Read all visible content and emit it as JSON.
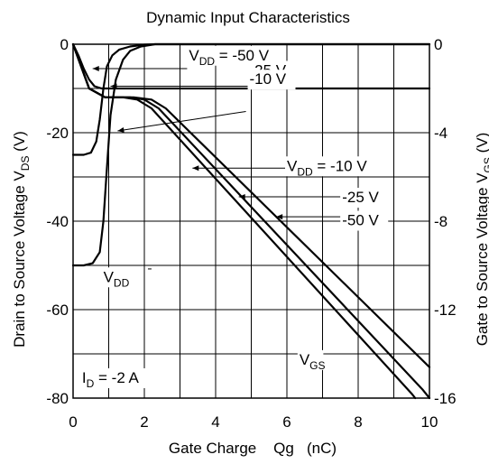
{
  "chart_data": {
    "type": "line",
    "title": "Dynamic Input Characteristics",
    "xlabel": "Gate Charge    Qg   (nC)",
    "ylabel_left": "Drain to Source Voltage   V_DS  (V)",
    "ylabel_right": "Gate to Source Voltage   V_GS  (V)",
    "xlim": [
      0,
      10
    ],
    "ylim_left": [
      -80,
      0
    ],
    "ylim_right": [
      -16,
      0
    ],
    "x_ticks": [
      "0",
      "2",
      "4",
      "6",
      "8",
      "10"
    ],
    "y_left_ticks": [
      "0",
      "-20",
      "-40",
      "-60",
      "-80"
    ],
    "y_right_ticks": [
      "0",
      "-4",
      "-8",
      "-12",
      "-16"
    ],
    "grid": true,
    "series": [
      {
        "name": "V_DS, V_DD = -50 V",
        "axis": "left",
        "x": [
          0,
          0.3,
          0.55,
          0.75,
          0.85,
          0.95,
          1.05,
          1.2,
          1.4,
          1.6,
          1.9,
          2.3,
          10
        ],
        "y": [
          -50,
          -50,
          -49.5,
          -47,
          -40,
          -28,
          -16,
          -8,
          -3.5,
          -1.5,
          -0.5,
          0,
          0
        ]
      },
      {
        "name": "V_DS, V_DD = -25 V",
        "axis": "left",
        "x": [
          0,
          0.3,
          0.5,
          0.65,
          0.75,
          0.85,
          0.95,
          1.1,
          1.3,
          1.6,
          2.0,
          2.3,
          10
        ],
        "y": [
          -25,
          -25,
          -24.5,
          -22,
          -17,
          -10,
          -5,
          -2.5,
          -1.2,
          -0.5,
          -0.1,
          0,
          0
        ]
      },
      {
        "name": "V_DS, V_DD = -10 V",
        "axis": "left",
        "x": [
          0,
          0.15,
          0.3,
          0.45,
          0.6,
          0.8,
          1.0,
          1.2,
          10
        ],
        "y": [
          0,
          -2.5,
          -5.5,
          -8,
          -9.5,
          -10,
          -10,
          -10,
          -10
        ]
      },
      {
        "name": "V_GS, V_DD = -10 V",
        "axis": "right",
        "x": [
          0,
          0.45,
          0.9,
          1.7,
          2.2,
          2.6,
          10
        ],
        "y": [
          0,
          -2.0,
          -2.4,
          -2.4,
          -2.5,
          -2.9,
          -14.6
        ]
      },
      {
        "name": "V_GS, V_DD = -25 V",
        "axis": "right",
        "x": [
          0,
          0.45,
          0.9,
          1.6,
          2.0,
          2.4,
          9.8,
          10
        ],
        "y": [
          0,
          -2.0,
          -2.4,
          -2.4,
          -2.5,
          -2.9,
          -15.6,
          -16
        ]
      },
      {
        "name": "V_GS, V_DD = -50 V",
        "axis": "right",
        "x": [
          0,
          0.45,
          0.9,
          1.4,
          1.8,
          2.2,
          9.5,
          9.6
        ],
        "y": [
          0,
          -2.0,
          -2.4,
          -2.4,
          -2.5,
          -2.9,
          -15.8,
          -16
        ]
      }
    ],
    "annotations": [
      {
        "text": "V",
        "sub": "DD",
        "tail": " = -50 V",
        "label_xy": [
          3.25,
          -2.4
        ],
        "line": [
          [
            3.2,
            -5.5
          ],
          [
            0.55,
            -5.5
          ]
        ]
      },
      {
        "text": "-25 V",
        "sub": "",
        "tail": "",
        "label_xy": [
          4.95,
          -5.8
        ],
        "line": [
          [
            4.9,
            -9.5
          ],
          [
            1.05,
            -9.5
          ]
        ]
      },
      {
        "text": "-10 V",
        "sub": "",
        "tail": "",
        "label_xy": [
          4.95,
          -7.8
        ],
        "line": [
          [
            4.85,
            -15.2
          ],
          [
            1.25,
            -19.6
          ]
        ]
      },
      {
        "text": "V",
        "sub": "DD",
        "tail": " = -10 V",
        "label_xy": [
          6.0,
          -27.4
        ],
        "line": [
          [
            6.0,
            -28.0
          ],
          [
            3.35,
            -28.0
          ]
        ]
      },
      {
        "text": "-25 V",
        "sub": "",
        "tail": "",
        "label_xy": [
          7.55,
          -34.5
        ],
        "line": [
          [
            7.5,
            -34.5
          ],
          [
            4.65,
            -34.5
          ]
        ]
      },
      {
        "text": "-50 V",
        "sub": "",
        "tail": "",
        "label_xy": [
          7.55,
          -39.7
        ],
        "line": [
          [
            7.5,
            -39.0
          ],
          [
            5.7,
            -39.0
          ]
        ]
      },
      {
        "text": "V",
        "sub": "DD",
        "tail": "",
        "label_xy": [
          0.85,
          -52.5
        ],
        "line": [
          [
            2.1,
            -50.8
          ],
          [
            2.2,
            -50.8
          ]
        ]
      },
      {
        "text": "V",
        "sub": "GS",
        "tail": "",
        "label_xy": [
          6.35,
          -71.2
        ],
        "line": [
          [
            7.75,
            -70.0
          ],
          [
            8.25,
            -70.0
          ]
        ]
      },
      {
        "text": "I",
        "sub": "D",
        "tail": " = -2 A",
        "label_xy": [
          0.25,
          -75.3
        ],
        "line": []
      }
    ]
  }
}
